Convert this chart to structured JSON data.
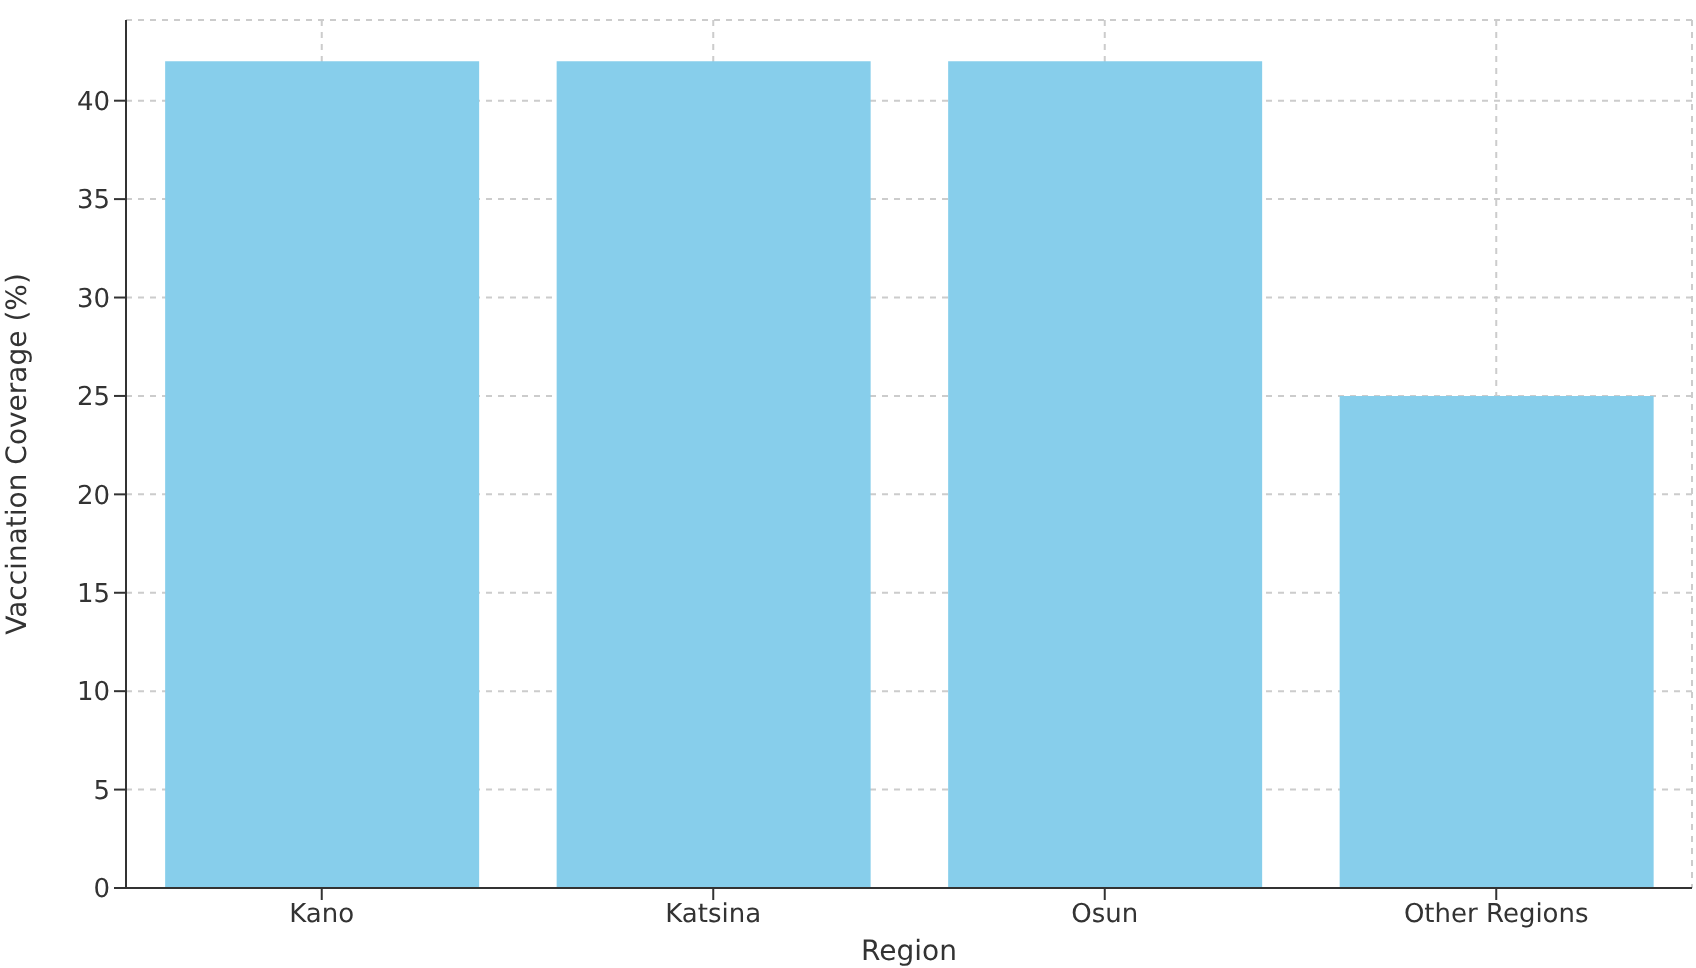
{
  "chart_data": {
    "type": "bar",
    "xlabel": "Region",
    "ylabel": "Vaccination Coverage (%)",
    "categories": [
      "Kano",
      "Katsina",
      "Osun",
      "Other Regions"
    ],
    "values": [
      42,
      42,
      42,
      25
    ],
    "color": "#87ceeb",
    "ylim": [
      0,
      44.1
    ],
    "yticks": [
      0,
      5,
      10,
      15,
      20,
      25,
      30,
      35,
      40
    ],
    "grid": true
  }
}
